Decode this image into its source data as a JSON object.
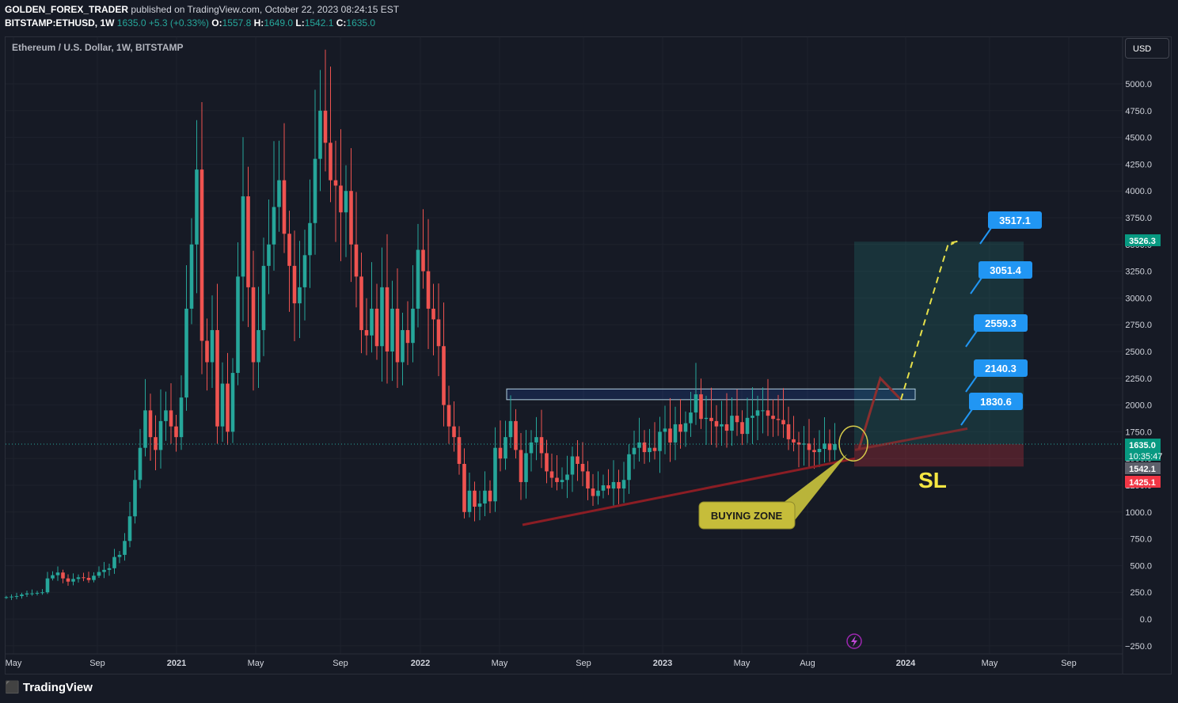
{
  "header": {
    "author": "GOLDEN_FOREX_TRADER",
    "published": "published on TradingView.com, October 22, 2023 08:24:15 EST",
    "symbol": "BITSTAMP:ETHUSD, 1W",
    "last": "1635.0",
    "change": "+5.3 (+0.33%)",
    "o_label": "O:",
    "o": "1557.8",
    "h_label": "H:",
    "h": "1649.0",
    "l_label": "L:",
    "l": "1542.1",
    "c_label": "C:",
    "c": "1635.0"
  },
  "symbol_title": "Ethereum / U.S. Dollar, 1W, BITSTAMP",
  "currency_button": "USD",
  "brand": "TradingView",
  "colors": {
    "up": "#26a69a",
    "down": "#ef5350",
    "background": "#161a25",
    "label_blue": "#2196f3",
    "trend_red": "#8b1d24",
    "zone_yellow": "#c6bd3a",
    "sl_text": "#f5e642"
  },
  "chart_data": {
    "type": "candlestick",
    "ylim": [
      -250,
      5250
    ],
    "y_ticks": [
      "5000.0",
      "4750.0",
      "4500.0",
      "4250.0",
      "4000.0",
      "3750.0",
      "3500.0",
      "3250.0",
      "3000.0",
      "2750.0",
      "2500.0",
      "2250.0",
      "2000.0",
      "1750.0",
      "1500.0",
      "1250.0",
      "1000.0",
      "750.0",
      "500.0",
      "250.0",
      "0.0",
      "−250.0"
    ],
    "x_ticks": [
      "May",
      "Sep",
      "2021",
      "May",
      "Sep",
      "2022",
      "May",
      "Sep",
      "2023",
      "May",
      "Aug",
      "2024",
      "May",
      "Sep"
    ],
    "closes": [
      205,
      210,
      215,
      230,
      240,
      240,
      245,
      250,
      380,
      410,
      435,
      380,
      350,
      375,
      390,
      385,
      365,
      405,
      440,
      460,
      475,
      580,
      600,
      730,
      960,
      1300,
      1600,
      1950,
      1700,
      1580,
      1850,
      1950,
      1800,
      1700,
      2070,
      2900,
      3500,
      4200,
      2600,
      2400,
      2700,
      1800,
      2200,
      1750,
      2300,
      3200,
      3950,
      3100,
      2400,
      2700,
      3300,
      3500,
      3850,
      4100,
      3600,
      3300,
      2950,
      3100,
      3400,
      3700,
      4300,
      4750,
      4450,
      4100,
      4050,
      3800,
      4000,
      3500,
      3200,
      2700,
      2650,
      2900,
      2550,
      3100,
      2500,
      2900,
      2400,
      2700,
      2580,
      2900,
      3450,
      3250,
      2900,
      2800,
      2550,
      2000,
      1800,
      1700,
      1450,
      1000,
      1200,
      1050,
      1080,
      1200,
      1100,
      1600,
      1500,
      1700,
      1850,
      1580,
      1280,
      1550,
      1650,
      1700,
      1550,
      1380,
      1320,
      1280,
      1300,
      1350,
      1520,
      1450,
      1380,
      1220,
      1150,
      1200,
      1250,
      1220,
      1280,
      1220,
      1300,
      1540,
      1600,
      1650,
      1560,
      1600,
      1570,
      1750,
      1780,
      1650,
      1820,
      1750,
      1830,
      1930,
      2100,
      1870,
      1880,
      1850,
      1800,
      1820,
      1760,
      1900,
      1840,
      1730,
      1880,
      1900,
      1950,
      1950,
      1900,
      1870,
      1860,
      1820,
      1680,
      1650,
      1630,
      1640,
      1580,
      1560,
      1590,
      1640,
      1580,
      1635
    ],
    "price_labels": [
      {
        "value": 3526.3,
        "text": "3526.3",
        "color": "#089981"
      },
      {
        "value": 1635.0,
        "text": "1635.0",
        "color": "#089981"
      },
      {
        "value": 1542.1,
        "text": "1542.1",
        "color": "#5d606b"
      },
      {
        "value": 1425.1,
        "text": "1425.1",
        "color": "#f23645"
      }
    ],
    "countdown": "10:35:47",
    "target_labels": [
      {
        "value": 3517.1,
        "text": "3517.1"
      },
      {
        "value": 3051.4,
        "text": "3051.4"
      },
      {
        "value": 2559.3,
        "text": "2559.3"
      },
      {
        "value": 2140.3,
        "text": "2140.3"
      },
      {
        "value": 1830.6,
        "text": "1830.6"
      }
    ],
    "annotations": {
      "buying_zone": "BUYING ZONE",
      "stop_loss": "SL"
    },
    "resistance_zone": [
      2050,
      2150
    ],
    "position": {
      "entry": 1635,
      "target": 3526.3,
      "stop": 1425.1
    }
  }
}
